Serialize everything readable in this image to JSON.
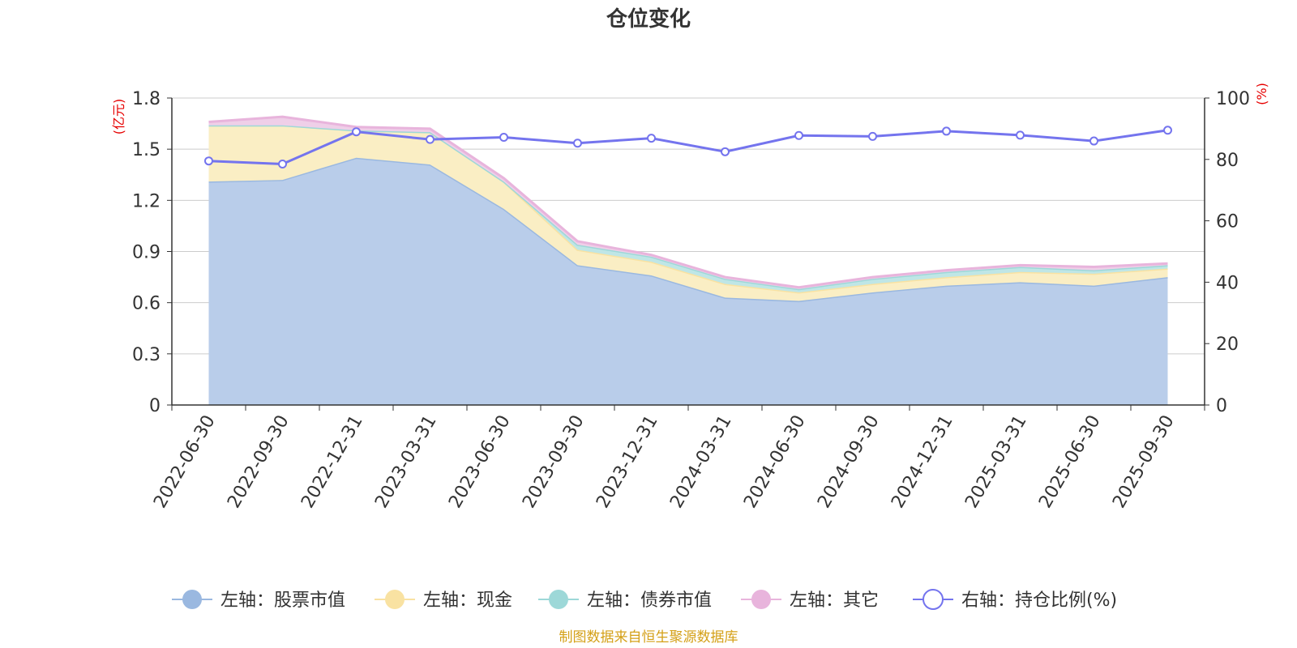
{
  "chart_data": {
    "type": "area",
    "title": "仓位变化",
    "categories": [
      "2022-06-30",
      "2022-09-30",
      "2022-12-31",
      "2023-03-31",
      "2023-06-30",
      "2023-09-30",
      "2023-12-31",
      "2024-03-31",
      "2024-06-30",
      "2024-09-30",
      "2024-12-31",
      "2025-03-31",
      "2025-06-30",
      "2025-09-30"
    ],
    "left_axis": {
      "unit": "(亿元)",
      "ylim": [
        0,
        1.8
      ],
      "ticks": [
        "0",
        "0.3",
        "0.6",
        "0.9",
        "1.2",
        "1.5",
        "1.8"
      ]
    },
    "right_axis": {
      "unit": "(%)",
      "ylim": [
        0,
        100
      ],
      "ticks": [
        "0",
        "20",
        "40",
        "60",
        "80",
        "100"
      ]
    },
    "series": [
      {
        "name": "左轴：股票市值",
        "axis": "left",
        "kind": "stacked-area",
        "color": "#9ab8e0",
        "fill": "#b9cdea",
        "values": [
          1.31,
          1.32,
          1.45,
          1.41,
          1.15,
          0.82,
          0.76,
          0.63,
          0.61,
          0.66,
          0.7,
          0.72,
          0.7,
          0.75
        ]
      },
      {
        "name": "左轴：现金",
        "axis": "left",
        "kind": "stacked-area",
        "color": "#f9e2a2",
        "fill": "#faeec4",
        "values": [
          0.33,
          0.32,
          0.16,
          0.19,
          0.16,
          0.09,
          0.08,
          0.08,
          0.05,
          0.05,
          0.05,
          0.06,
          0.07,
          0.05
        ]
      },
      {
        "name": "左轴：债券市值",
        "axis": "left",
        "kind": "stacked-area",
        "color": "#9dd8d8",
        "fill": "#bfe6e6",
        "values": [
          0.0,
          0.0,
          0.0,
          0.0,
          0.0,
          0.03,
          0.03,
          0.03,
          0.02,
          0.03,
          0.03,
          0.03,
          0.02,
          0.02
        ]
      },
      {
        "name": "左轴：其它",
        "axis": "left",
        "kind": "stacked-area",
        "color": "#e8b4dc",
        "fill": "#efcfe8",
        "values": [
          0.02,
          0.05,
          0.02,
          0.02,
          0.02,
          0.02,
          0.01,
          0.01,
          0.01,
          0.01,
          0.01,
          0.01,
          0.02,
          0.01
        ]
      },
      {
        "name": "右轴：持仓比例(%)",
        "axis": "right",
        "kind": "line",
        "color": "#7474ee",
        "values": [
          79.5,
          78.5,
          89.0,
          86.5,
          87.2,
          85.3,
          86.9,
          82.5,
          87.8,
          87.5,
          89.2,
          87.9,
          86.0,
          89.5
        ]
      }
    ],
    "source_note": "制图数据来自恒生聚源数据库"
  }
}
